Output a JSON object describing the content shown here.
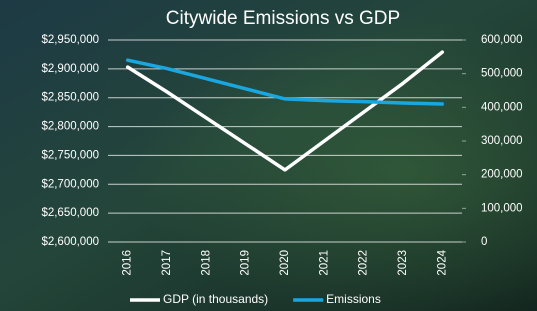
{
  "chart_data": {
    "type": "line",
    "title": "Citywide Emissions vs GDP",
    "categories": [
      "2016",
      "2017",
      "2018",
      "2019",
      "2020",
      "2021",
      "2022",
      "2023",
      "2024"
    ],
    "series": [
      {
        "name": "GDP (in thousands)",
        "color": "#ffffff",
        "axis": "y",
        "values": [
          2903000,
          2860000,
          2815000,
          2770000,
          2725000,
          2775000,
          2825000,
          2875000,
          2929000
        ]
      },
      {
        "name": "Emissions",
        "color": "#1aa7e0",
        "axis": "y2",
        "values": [
          540000,
          515000,
          485000,
          455000,
          425000,
          420000,
          417000,
          413000,
          410000
        ]
      }
    ],
    "ylim": [
      2600000,
      2950000
    ],
    "yticks": [
      {
        "value": 2600000,
        "label": "$2,600,000"
      },
      {
        "value": 2650000,
        "label": "$2,650,000"
      },
      {
        "value": 2700000,
        "label": "$2,700,000"
      },
      {
        "value": 2750000,
        "label": "$2,750,000"
      },
      {
        "value": 2800000,
        "label": "$2,800,000"
      },
      {
        "value": 2850000,
        "label": "$2,850,000"
      },
      {
        "value": 2900000,
        "label": "$2,900,000"
      },
      {
        "value": 2950000,
        "label": "$2,950,000"
      }
    ],
    "y2lim": [
      0,
      600000
    ],
    "y2ticks": [
      0,
      {
        "value": 100000,
        "label": "100,000"
      },
      {
        "value": 200000,
        "label": "200,000"
      },
      {
        "value": 300000,
        "label": "300,000"
      },
      {
        "value": 400000,
        "label": "400,000"
      },
      {
        "value": 500000,
        "label": "500,000"
      },
      {
        "value": 600000,
        "label": "600,000"
      }
    ],
    "grid": true,
    "legend": "bottom"
  }
}
